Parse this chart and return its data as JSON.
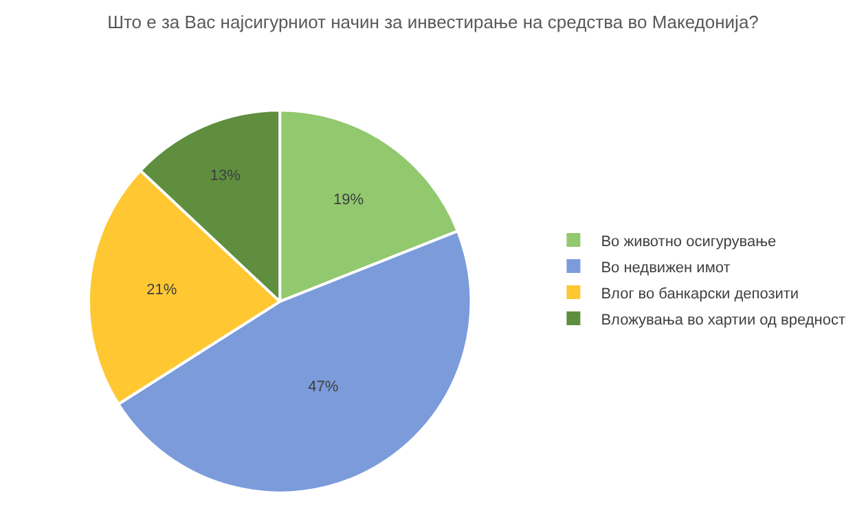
{
  "chart_data": {
    "type": "pie",
    "title": "Што е за Вас најсигурниот начин за инвестирање на средства во Македонија?",
    "categories": [
      "Во животно осигурување",
      "Во недвижен имот",
      "Влог во банкарски депозити",
      "Вложувања во хартии од вредност"
    ],
    "values": [
      19,
      47,
      21,
      13
    ],
    "value_labels": [
      "19%",
      "47%",
      "21%",
      "13%"
    ],
    "colors": [
      "#92c86e",
      "#7b9bdb",
      "#ffc732",
      "#5f8f3e"
    ],
    "legend": "right"
  }
}
